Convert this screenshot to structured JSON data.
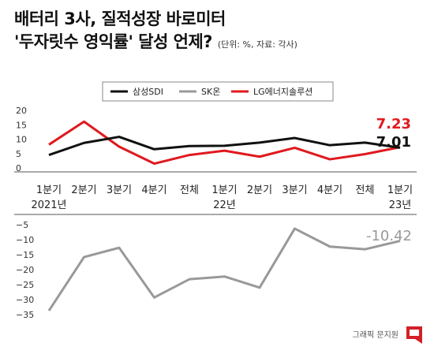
{
  "title": {
    "line1": "배터리 3사, 질적성장 바로미터",
    "line2": "'두자릿수 영익률' 달성 언제?",
    "unit": "(단위: %, 자료: 각사)"
  },
  "credit": "그래픽 문지원",
  "colors": {
    "samsung": "#111111",
    "sk": "#999999",
    "lg": "#e0191e"
  },
  "chart_data": [
    {
      "type": "line",
      "categories": [
        "1분기",
        "2분기",
        "3분기",
        "4분기",
        "전체",
        "1분기",
        "2분기",
        "3분기",
        "4분기",
        "전체",
        "1분기"
      ],
      "year_labels": [
        {
          "label": "2021년",
          "index": 0
        },
        {
          "label": "22년",
          "index": 5
        },
        {
          "label": "23년",
          "index": 10
        }
      ],
      "ylim": [
        0,
        20
      ],
      "yticks": [
        0,
        5,
        10,
        15,
        20
      ],
      "series": [
        {
          "name": "삼성SDI",
          "color": "#111111",
          "values": [
            4.5,
            8.7,
            10.8,
            6.5,
            7.6,
            7.7,
            8.8,
            10.4,
            7.9,
            8.8,
            7.01
          ]
        },
        {
          "name": "LG에너지솔루션",
          "color": "#e0191e",
          "values": [
            8.1,
            16.1,
            7.4,
            1.5,
            4.5,
            6.0,
            3.9,
            7.0,
            3.0,
            4.8,
            7.23
          ]
        }
      ],
      "data_labels": [
        {
          "text": "7.23",
          "series": "LG에너지솔루션",
          "color": "#e0191e"
        },
        {
          "text": "7.01",
          "series": "삼성SDI",
          "color": "#111111"
        }
      ]
    },
    {
      "type": "line",
      "ylim": [
        -35,
        -5
      ],
      "yticks": [
        -5,
        -10,
        -15,
        -20,
        -25,
        -30,
        -35
      ],
      "series": [
        {
          "name": "SK온",
          "color": "#999999",
          "values": [
            -33.7,
            -15.8,
            -12.7,
            -29.3,
            -23.2,
            -22.3,
            -26.0,
            -6.3,
            -12.3,
            -13.2,
            -10.42
          ]
        }
      ],
      "data_labels": [
        {
          "text": "-10.42",
          "series": "SK온",
          "color": "#999999"
        }
      ]
    }
  ],
  "legend": [
    {
      "label": "삼성SDI",
      "color": "#111111"
    },
    {
      "label": "SK온",
      "color": "#999999"
    },
    {
      "label": "LG에너지솔루션",
      "color": "#e0191e"
    }
  ]
}
